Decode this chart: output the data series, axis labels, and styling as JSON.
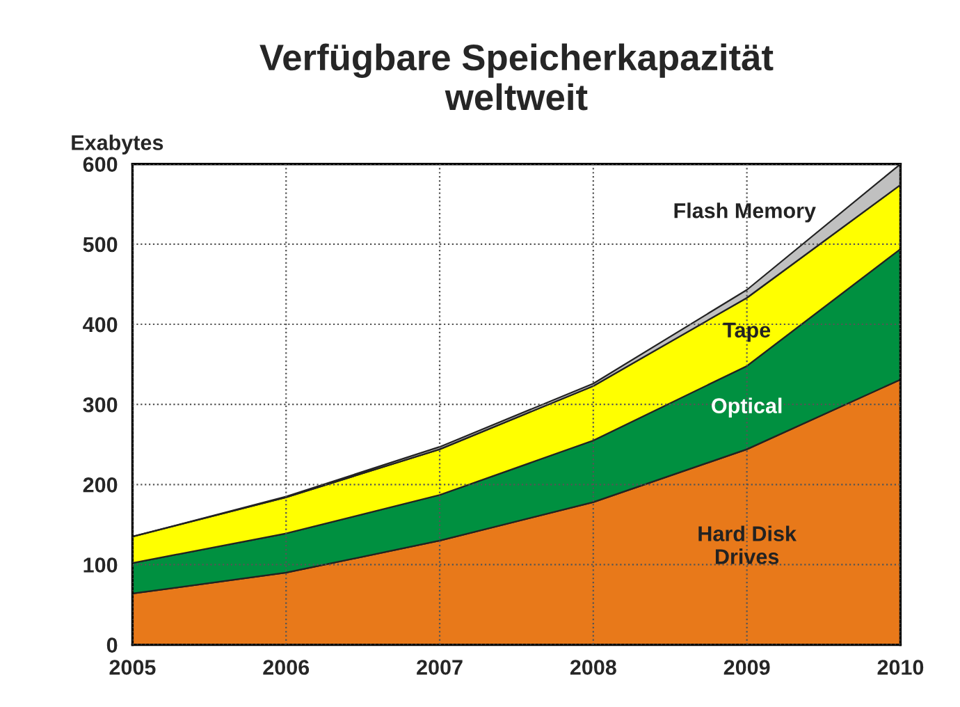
{
  "chart_data": {
    "type": "area",
    "title": "Verfügbare Speicherkapazität\nweltweit",
    "ylabel": "Exabytes",
    "stacked": true,
    "x": [
      2005,
      2006,
      2007,
      2008,
      2009,
      2010
    ],
    "series": [
      {
        "name": "Hard Disk\nDrives",
        "color": "#e8791a",
        "values": [
          64,
          90,
          130,
          178,
          244,
          331
        ]
      },
      {
        "name": "Optical",
        "color": "#009040",
        "values": [
          38,
          49,
          57,
          77,
          104,
          163
        ]
      },
      {
        "name": "Tape",
        "color": "#ffff00",
        "values": [
          33,
          45,
          57,
          68,
          85,
          80
        ]
      },
      {
        "name": "Flash Memory",
        "color": "#c0c0c0",
        "values": [
          0,
          1,
          3,
          3,
          10,
          26
        ]
      }
    ],
    "xlim": [
      2005,
      2010
    ],
    "xticks": [
      2005,
      2006,
      2007,
      2008,
      2009,
      2010
    ],
    "ylim": [
      0,
      600
    ],
    "yticks": [
      0,
      100,
      200,
      300,
      400,
      500,
      600
    ],
    "grid": true,
    "legend": false
  }
}
